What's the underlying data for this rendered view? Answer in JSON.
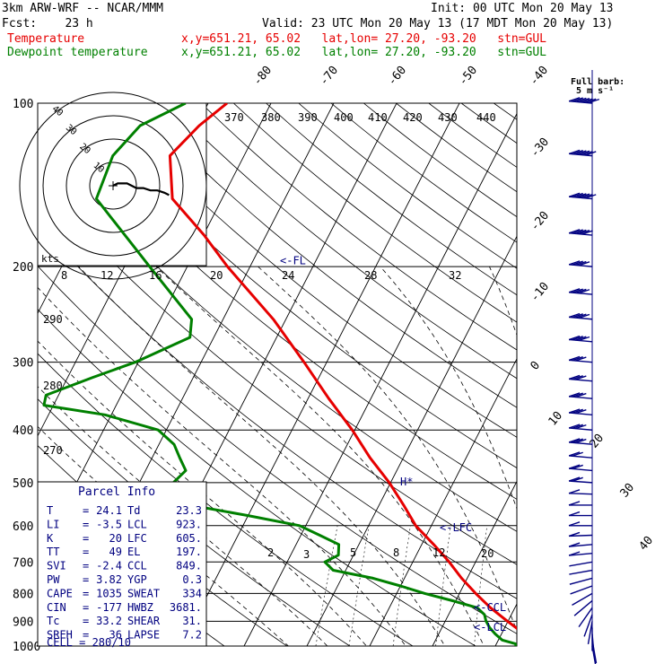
{
  "header": {
    "model": "3km ARW-WRF -- NCAR/MMM",
    "init": "Init: 00 UTC Mon 20 May 13",
    "fcst": "Fcst:    23 h",
    "valid": "Valid: 23 UTC Mon 20 May 13 (17 MDT Mon 20 May 13)",
    "temp_label": "Temperature",
    "temp_info": "x,y=651.21, 65.02   lat,lon= 27.20, -93.20   stn=GUL",
    "dew_label": "Dewpoint temperature",
    "dew_info": "x,y=651.21, 65.02   lat,lon= 27.20, -93.20   stn=GUL"
  },
  "colors": {
    "temperature": "#e60000",
    "dewpoint": "#008000",
    "wind": "#000080",
    "text_blue": "#000080"
  },
  "chart_data": {
    "type": "line",
    "title": "",
    "xlabel": "",
    "ylabel": "",
    "y_scale": "log",
    "ylim": [
      100,
      1000
    ],
    "pressure_levels": [
      "100",
      "200",
      "300",
      "400",
      "500",
      "600",
      "700",
      "800",
      "900",
      "1000"
    ],
    "isotherm_labels": [
      "-80",
      "-70",
      "-60",
      "-50",
      "-40",
      "-30",
      "-20",
      "-10",
      "0",
      "10",
      "20",
      "30",
      "40"
    ],
    "theta_labels": [
      "370",
      "380",
      "390",
      "400",
      "410",
      "420",
      "430",
      "440",
      "290",
      "280",
      "270"
    ],
    "mixing_ratio_labels": [
      "2",
      "3",
      "5",
      "8",
      "12",
      "20"
    ],
    "series": [
      {
        "key": "temperature",
        "pressure": [
          1000,
          990,
          975,
          950,
          925,
          900,
          850,
          800,
          750,
          700,
          650,
          600,
          550,
          500,
          450,
          400,
          350,
          300,
          250,
          200,
          175,
          150,
          125,
          110,
          100
        ],
        "values": [
          25.0,
          26.1,
          25.1,
          23.4,
          21.8,
          19.9,
          16.1,
          12.6,
          9.1,
          5.8,
          1.9,
          -2.5,
          -6.1,
          -10.2,
          -15.3,
          -20.4,
          -26.7,
          -33.6,
          -42.0,
          -53.6,
          -59.9,
          -67.9,
          -71.8,
          -69.6,
          -67.0
        ]
      },
      {
        "key": "dewpoint",
        "pressure": [
          1000,
          990,
          975,
          950,
          925,
          900,
          875,
          850,
          825,
          800,
          775,
          750,
          725,
          700,
          680,
          650,
          625,
          600,
          575,
          550,
          525,
          500,
          475,
          450,
          425,
          400,
          375,
          360,
          345,
          320,
          300,
          270,
          250,
          200,
          150,
          125,
          110,
          100
        ],
        "values": [
          23.3,
          23.0,
          20.6,
          19.0,
          17.6,
          16.5,
          15.7,
          14.0,
          9.5,
          4.5,
          0.0,
          -5.0,
          -12.0,
          -14.0,
          -12.4,
          -13.2,
          -17.0,
          -21.0,
          -30.0,
          -40.2,
          -44.0,
          -44.6,
          -43.6,
          -45.6,
          -47.6,
          -51.3,
          -61.0,
          -71.5,
          -72.0,
          -66.0,
          -60.5,
          -53.8,
          -55.0,
          -66.0,
          -80.0,
          -80.9,
          -79.0,
          -73.6
        ]
      }
    ],
    "hodograph": {
      "speed_rings": [
        "10",
        "20",
        "30",
        "40"
      ],
      "u": [
        0,
        2,
        4,
        6,
        8,
        10,
        13,
        16,
        19,
        22,
        24
      ],
      "v": [
        0,
        1,
        1,
        1,
        0,
        -1,
        -1,
        -2,
        -2,
        -3,
        -4
      ]
    },
    "wind_barbs": {
      "pressure": [
        1000,
        975,
        950,
        925,
        900,
        875,
        850,
        825,
        800,
        775,
        750,
        725,
        700,
        675,
        650,
        625,
        600,
        575,
        550,
        525,
        500,
        475,
        450,
        425,
        400,
        375,
        350,
        325,
        300,
        275,
        250,
        225,
        200,
        175,
        150,
        125,
        100
      ],
      "speed_ms": [
        3,
        3,
        4,
        4,
        4,
        3,
        3,
        3,
        2,
        2,
        3,
        3,
        4,
        5,
        5,
        6,
        6,
        7,
        8,
        9,
        10,
        12,
        13,
        15,
        16,
        17,
        18,
        18,
        19,
        21,
        22,
        23,
        24,
        26,
        30,
        32,
        35
      ],
      "direction_deg": [
        170,
        170,
        175,
        180,
        190,
        200,
        215,
        230,
        240,
        250,
        255,
        260,
        260,
        265,
        265,
        268,
        270,
        270,
        270,
        272,
        274,
        275,
        275,
        275,
        275,
        275,
        275,
        275,
        275,
        275,
        275,
        275,
        275,
        275,
        275,
        275,
        275
      ]
    },
    "levels": [
      {
        "label": "<-FL",
        "pressure": 195
      },
      {
        "label": "H*",
        "pressure": 498
      },
      {
        "label": "<-LFC",
        "pressure": 605
      },
      {
        "label": "<-CCL",
        "pressure": 849
      },
      {
        "label": "<-LCL",
        "pressure": 923
      }
    ],
    "barb_header": "Full barb:",
    "barb_units": "5 m s⁻¹",
    "hodo_units": "kts",
    "hodo_speed_labels": [
      "8",
      "12",
      "16",
      "20",
      "24",
      "28",
      "32"
    ]
  },
  "parcel": {
    "title": "Parcel Info",
    "rows": [
      [
        "T",
        "24.1",
        "Td",
        "23.3"
      ],
      [
        "LI",
        "-3.5",
        "LCL",
        "923."
      ],
      [
        "K",
        "20",
        "LFC",
        "605."
      ],
      [
        "TT",
        "49",
        "EL",
        "197."
      ],
      [
        "SVI",
        "-2.4",
        "CCL",
        "849."
      ],
      [
        "PW",
        "3.82",
        "YGP",
        "0.3"
      ],
      [
        "CAPE",
        "1035",
        "SWEAT",
        "334"
      ],
      [
        "CIN",
        "-177",
        "HWBZ",
        "3681."
      ],
      [
        "Tc",
        "33.2",
        "SHEAR",
        "31."
      ],
      [
        "SREH",
        "36",
        "LAPSE",
        "7.2"
      ]
    ],
    "cell_label": "CELL",
    "cell_value": "280/10"
  }
}
